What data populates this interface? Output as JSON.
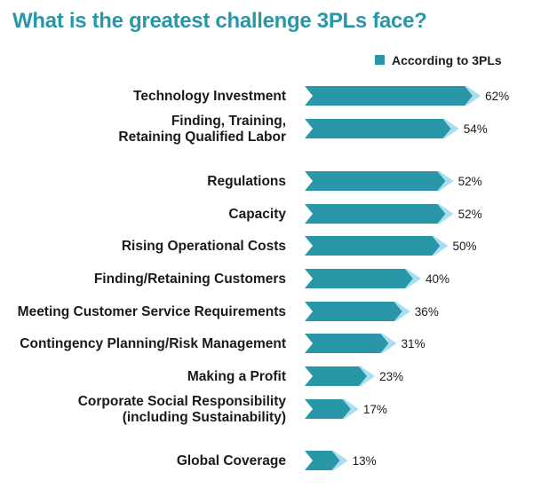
{
  "title": "What is the greatest challenge 3PLs face?",
  "chart_data": {
    "type": "bar",
    "orientation": "horizontal",
    "title": "What is the greatest challenge 3PLs face?",
    "xlabel": "",
    "ylabel": "",
    "xlim": [
      0,
      100
    ],
    "grid": false,
    "legend_position": "top-right",
    "value_suffix": "%",
    "categories": [
      [
        "Technology Investment"
      ],
      [
        "Finding, Training,",
        "Retaining Qualified Labor"
      ],
      [
        "Regulations"
      ],
      [
        "Capacity"
      ],
      [
        "Rising Operational Costs"
      ],
      [
        "Finding/Retaining Customers"
      ],
      [
        "Meeting Customer Service Requirements"
      ],
      [
        "Contingency Planning/Risk Management"
      ],
      [
        "Making a Profit"
      ],
      [
        "Corporate Social Responsibility",
        "(including Sustainability)"
      ],
      [
        "Global Coverage"
      ]
    ],
    "series": [
      {
        "name": "According to 3PLs",
        "values": [
          62,
          54,
          52,
          52,
          50,
          40,
          36,
          31,
          23,
          17,
          13
        ]
      }
    ]
  },
  "colors": {
    "title": "#2a97a8",
    "bar": "#2a97a8",
    "bar_tip": "#a8dff0",
    "legend_swatch": "#2a97a8"
  }
}
